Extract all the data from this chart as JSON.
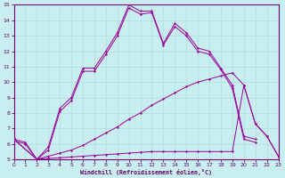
{
  "xlabel": "Windchill (Refroidissement éolien,°C)",
  "bg_color": "#c8eef0",
  "line_color": "#990099",
  "grid_color": "#b0dde0",
  "xlim": [
    0,
    23
  ],
  "ylim": [
    5,
    15
  ],
  "line1_x": [
    0,
    1,
    2,
    3,
    4,
    5,
    6,
    7,
    8,
    9,
    10,
    11,
    12,
    13,
    14,
    15,
    16,
    17,
    18,
    19,
    20,
    21
  ],
  "line1_y": [
    6.3,
    6.1,
    5.0,
    5.8,
    8.3,
    9.0,
    10.9,
    10.9,
    12.0,
    13.2,
    15.0,
    14.6,
    14.6,
    12.5,
    13.8,
    13.2,
    12.2,
    12.0,
    10.9,
    9.8,
    6.5,
    6.3
  ],
  "line2_x": [
    0,
    1,
    2,
    3,
    4,
    5,
    6,
    7,
    8,
    9,
    10,
    11,
    12,
    13,
    14,
    15,
    16,
    17,
    18,
    19,
    20,
    21
  ],
  "line2_y": [
    6.2,
    6.0,
    5.0,
    5.6,
    8.1,
    8.8,
    10.7,
    10.7,
    11.8,
    13.0,
    14.8,
    14.4,
    14.5,
    12.4,
    13.6,
    13.0,
    12.0,
    11.8,
    10.8,
    9.6,
    6.3,
    6.1
  ],
  "line3_x": [
    0,
    2,
    3,
    4,
    5,
    6,
    7,
    8,
    9,
    10,
    11,
    12,
    13,
    14,
    15,
    16,
    17,
    18,
    19,
    20,
    21,
    22,
    23
  ],
  "line3_y": [
    6.3,
    5.0,
    5.2,
    5.4,
    5.6,
    5.9,
    6.3,
    6.7,
    7.1,
    7.6,
    8.0,
    8.5,
    8.9,
    9.3,
    9.7,
    10.0,
    10.2,
    10.4,
    10.6,
    9.8,
    7.3,
    6.5,
    5.2
  ],
  "line4_x": [
    0,
    2,
    3,
    4,
    5,
    6,
    7,
    8,
    9,
    10,
    11,
    12,
    13,
    14,
    15,
    16,
    17,
    18,
    19,
    20,
    21,
    22,
    23
  ],
  "line4_y": [
    6.3,
    5.0,
    5.05,
    5.1,
    5.15,
    5.2,
    5.25,
    5.3,
    5.35,
    5.4,
    5.45,
    5.5,
    5.5,
    5.5,
    5.5,
    5.5,
    5.5,
    5.5,
    5.5,
    9.8,
    7.3,
    6.5,
    5.2
  ]
}
